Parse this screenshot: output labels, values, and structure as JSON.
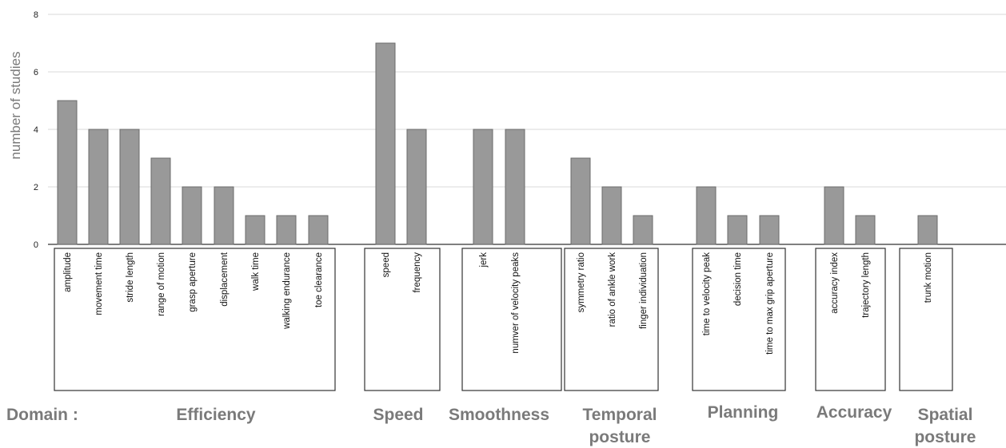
{
  "chart_data": {
    "type": "bar",
    "ylabel": "number of studies",
    "ylim": [
      0,
      8
    ],
    "yticks": [
      0,
      2,
      4,
      6,
      8
    ],
    "grid": true,
    "bar_color": "#999999",
    "domain_prefix": "Domain :",
    "groups": [
      {
        "domain": [
          "Efficiency"
        ],
        "categories": [
          "amplitude",
          "movement time",
          "stride length",
          "range of motion",
          "grasp aperture",
          "displacement",
          "walk time",
          "walking endurance",
          "toe clearance"
        ],
        "values": [
          5,
          4,
          4,
          3,
          2,
          2,
          1,
          1,
          1
        ]
      },
      {
        "domain": [
          "Speed"
        ],
        "categories": [
          "speed",
          "frequency"
        ],
        "values": [
          7,
          4
        ]
      },
      {
        "domain": [
          "Smoothness"
        ],
        "categories": [
          "jerk",
          "numver of velocity peaks"
        ],
        "values": [
          4,
          4
        ]
      },
      {
        "domain": [
          "Temporal",
          "posture"
        ],
        "categories": [
          "symmetry ratio",
          "ratio of ankle work",
          "finger individuation"
        ],
        "values": [
          3,
          2,
          1
        ]
      },
      {
        "domain": [
          "Planning"
        ],
        "categories": [
          "time to velocity peak",
          "decision time",
          "time to max grip aperture"
        ],
        "values": [
          2,
          1,
          1
        ]
      },
      {
        "domain": [
          "Accuracy"
        ],
        "categories": [
          "accuracy index",
          "trajectory length"
        ],
        "values": [
          2,
          1
        ]
      },
      {
        "domain": [
          "Spatial",
          "posture"
        ],
        "categories": [
          "trunk motion"
        ],
        "values": [
          1
        ]
      }
    ]
  }
}
